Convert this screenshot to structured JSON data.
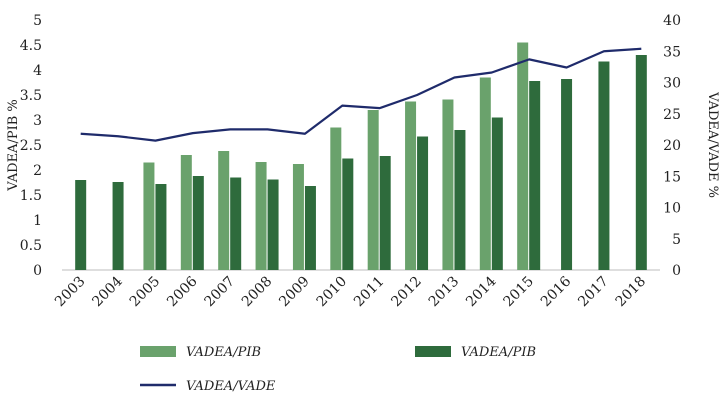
{
  "chart_data": {
    "type": "bar",
    "title": "",
    "categories": [
      "2003",
      "2004",
      "2005",
      "2006",
      "2007",
      "2008",
      "2009",
      "2010",
      "2011",
      "2012",
      "2013",
      "2014",
      "2015",
      "2016",
      "2017",
      "2018"
    ],
    "series": [
      {
        "name": "VADEA/PIB",
        "type": "bar",
        "axis": "left",
        "color": "#6aa26c",
        "values": [
          null,
          null,
          2.15,
          2.3,
          2.38,
          2.16,
          2.12,
          2.85,
          3.2,
          3.37,
          3.41,
          3.85,
          4.55,
          null,
          null,
          null
        ]
      },
      {
        "name": "VADEA/PIB",
        "type": "bar",
        "axis": "left",
        "color": "#2e6b3c",
        "values": [
          1.8,
          1.76,
          1.72,
          1.88,
          1.85,
          1.81,
          1.68,
          2.23,
          2.28,
          2.67,
          2.8,
          3.05,
          3.78,
          3.82,
          4.17,
          4.3
        ]
      },
      {
        "name": "VADEA/VADE",
        "type": "line",
        "axis": "right",
        "color": "#1f2b6b",
        "values": [
          21.8,
          21.4,
          20.7,
          21.9,
          22.5,
          22.5,
          21.8,
          26.3,
          25.9,
          28.0,
          30.8,
          31.6,
          33.7,
          32.4,
          35.0,
          35.4
        ]
      }
    ],
    "ylabel": "VADEA/PIB %",
    "ylabel_right": "VADEA/VADE %",
    "ylim": [
      0,
      5
    ],
    "ylim_right": [
      0,
      40
    ],
    "yticks": [
      "0",
      "0.5",
      "1",
      "1.5",
      "2",
      "2.5",
      "3",
      "3.5",
      "4",
      "4.5",
      "5"
    ],
    "yticks_right": [
      "0",
      "5",
      "10",
      "15",
      "20",
      "25",
      "30",
      "35",
      "40"
    ],
    "legend": [
      {
        "label": "VADEA/PIB",
        "kind": "bar",
        "color": "#6aa26c"
      },
      {
        "label": "VADEA/PIB",
        "kind": "bar",
        "color": "#2e6b3c"
      },
      {
        "label": "VADEA/VADE",
        "kind": "line",
        "color": "#1f2b6b"
      }
    ],
    "legend_position": "bottom",
    "grid": false
  }
}
